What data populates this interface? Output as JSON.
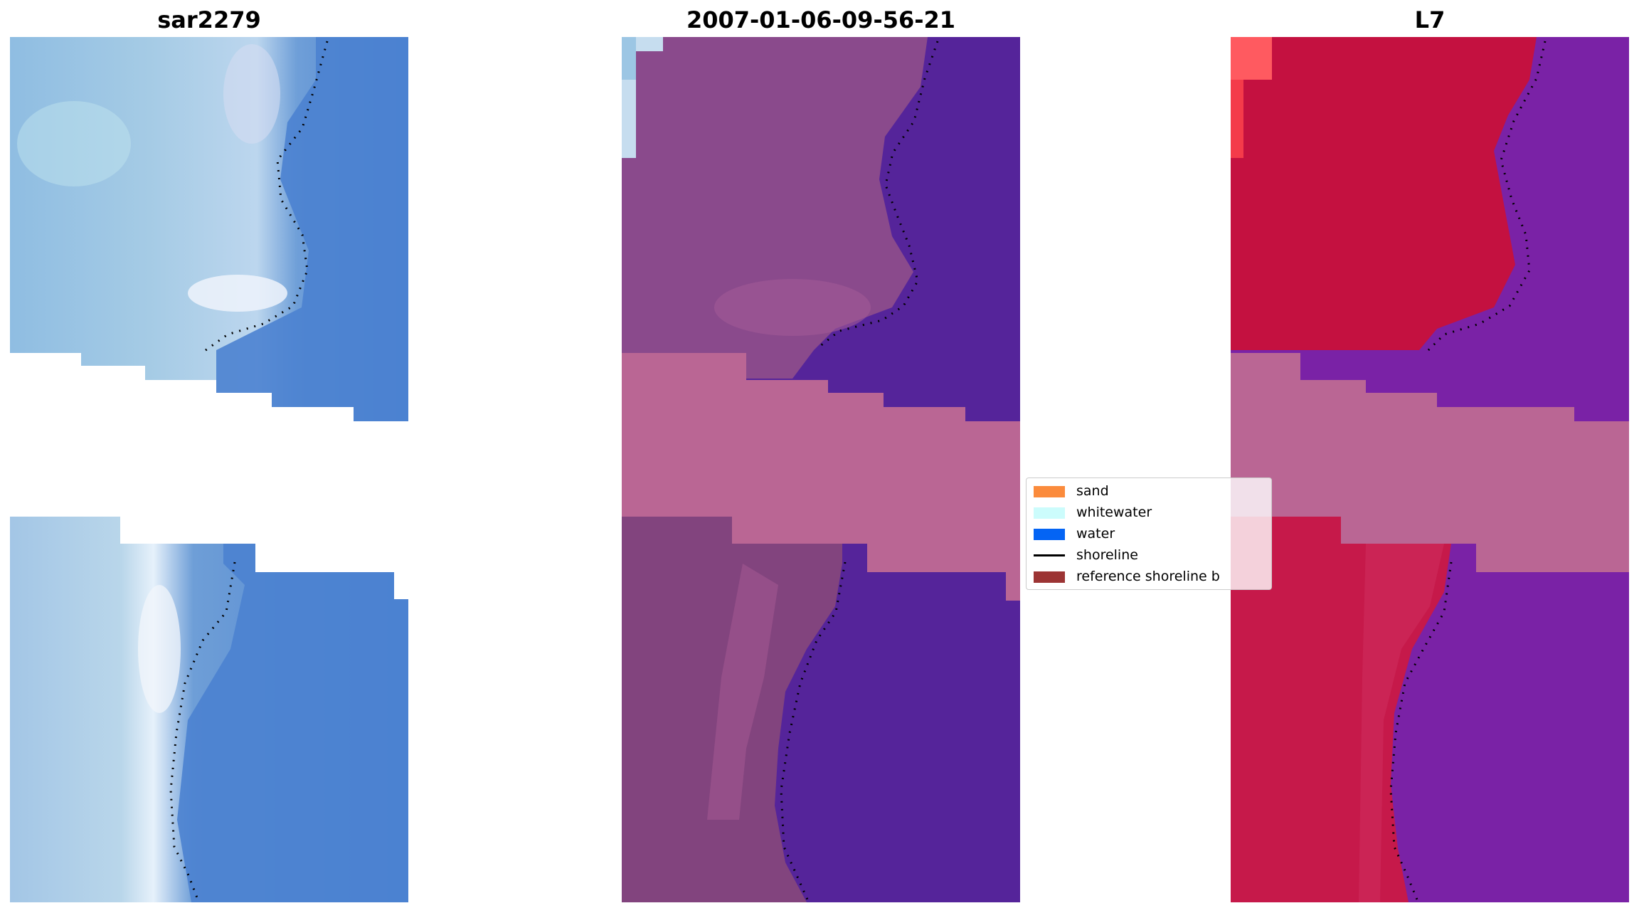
{
  "panels": [
    {
      "title": "sar2279",
      "style": "rgb"
    },
    {
      "title": "2007-01-06-09-56-21",
      "style": "classified"
    },
    {
      "title": "L7",
      "style": "index"
    }
  ],
  "legend": {
    "items": [
      {
        "label": "sand",
        "kind": "patch",
        "color": "#fb8b3c"
      },
      {
        "label": "whitewater",
        "kind": "patch",
        "color": "#ccfcfc"
      },
      {
        "label": "water",
        "kind": "patch",
        "color": "#0464f4"
      },
      {
        "label": "shoreline",
        "kind": "line",
        "color": "#000000"
      },
      {
        "label": "reference shoreline b",
        "kind": "patch",
        "color": "#9c3434"
      }
    ]
  },
  "colors": {
    "no_data_band": "#ba6694",
    "classified_water": "#55249a",
    "index_land": "#c41140",
    "index_water": "#7a22a6",
    "rgb_water": "#4a80cf",
    "rgb_land": "#9dc2e2"
  }
}
